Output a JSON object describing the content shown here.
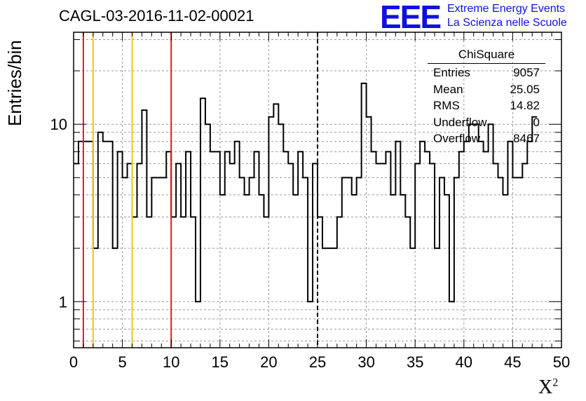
{
  "title": "CAGL-03-2016-11-02-00021",
  "logo": {
    "mark": "EEE",
    "line1": "Extreme Energy Events",
    "line2": "La Scienza nelle Scuole"
  },
  "stats": {
    "title": "ChiSquare",
    "rows": [
      {
        "label": "Entries",
        "value": "9057"
      },
      {
        "label": "Mean",
        "value": "25.05"
      },
      {
        "label": "RMS",
        "value": "14.82"
      },
      {
        "label": "Underflow",
        "value": "0"
      },
      {
        "label": "Overflow",
        "value": "8467"
      }
    ]
  },
  "chart_data": {
    "type": "histogram",
    "ylabel": "Entries/bin",
    "xlabel": "X",
    "xlabel_sup": "2",
    "xlim": [
      0,
      50
    ],
    "ylim": [
      0.55,
      33
    ],
    "yscale": "log",
    "grid": true,
    "bin_width": 0.5,
    "x_ticks": [
      "0",
      "5",
      "10",
      "15",
      "20",
      "25",
      "30",
      "35",
      "40",
      "45",
      "50"
    ],
    "y_ticks": [
      "1",
      "10"
    ],
    "bin_values": [
      6,
      8,
      8,
      8,
      2,
      9,
      8,
      8,
      2,
      7,
      5,
      6,
      3,
      6,
      12,
      3,
      5,
      5,
      5,
      7,
      3,
      6,
      3,
      7,
      3,
      1,
      14,
      10,
      7,
      7,
      4,
      7,
      6,
      8,
      5,
      4,
      5,
      7,
      4,
      3,
      11,
      13,
      10,
      7,
      6,
      4,
      7,
      5,
      1,
      6,
      3,
      2,
      2,
      2,
      3,
      5,
      5,
      4,
      5,
      17,
      11,
      7,
      6,
      6,
      7,
      4,
      8,
      4,
      3,
      2,
      6,
      8,
      7,
      6,
      2,
      5,
      4,
      1,
      5,
      7,
      8,
      10,
      10,
      8,
      7,
      10,
      6,
      5,
      4,
      8,
      5,
      5,
      6,
      8,
      11
    ],
    "vertical_lines": [
      {
        "x": 1,
        "color": "#e31a1c",
        "style": "solid"
      },
      {
        "x": 2,
        "color": "#f0c419",
        "style": "solid"
      },
      {
        "x": 6,
        "color": "#f0c419",
        "style": "solid"
      },
      {
        "x": 10,
        "color": "#e31a1c",
        "style": "solid"
      },
      {
        "x": 25,
        "color": "#000000",
        "style": "dashed"
      }
    ]
  }
}
